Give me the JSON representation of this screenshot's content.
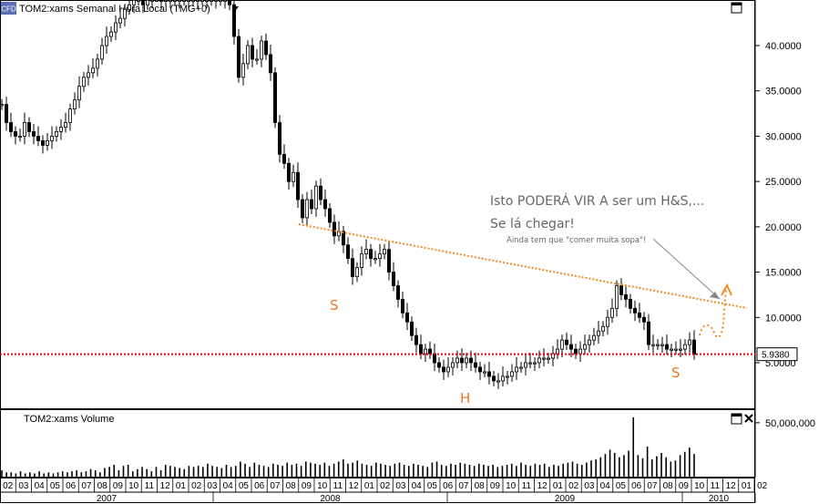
{
  "chart_data": [
    {
      "type": "candlestick",
      "title": "TOM2:xams Semanal Hora Local (TMG+0)",
      "symbol_badge": "CFD",
      "price_axis_ticks": [
        "40.0000",
        "35.0000",
        "30.0000",
        "25.0000",
        "20.0000",
        "15.0000",
        "10.0000",
        "5.0000"
      ],
      "ylim": [
        0.5,
        45
      ],
      "last_price": "5.9380",
      "last_price_value": 5.938,
      "x_months": [
        "02",
        "03",
        "04",
        "05",
        "06",
        "07",
        "08",
        "09",
        "10",
        "11",
        "12",
        "01",
        "02",
        "03",
        "04",
        "05",
        "06",
        "07",
        "08",
        "09",
        "10",
        "11",
        "12",
        "01",
        "02",
        "03",
        "04",
        "05",
        "06",
        "07",
        "08",
        "09",
        "10",
        "11",
        "12",
        "01",
        "02",
        "03",
        "04",
        "05",
        "06",
        "07",
        "08",
        "09",
        "10",
        "11",
        "12",
        "01",
        "02"
      ],
      "x_years": [
        {
          "label": "2007",
          "month_index": 5
        },
        {
          "label": "2008",
          "month_index": 17
        },
        {
          "label": "2009",
          "month_index": 29
        },
        {
          "label": "2010",
          "month_index": 40
        }
      ],
      "closes": [
        33.5,
        31.5,
        30.5,
        30.0,
        30.0,
        31.5,
        30.5,
        30.0,
        29.5,
        29.0,
        29.5,
        30.0,
        30.5,
        31.0,
        31.5,
        33.0,
        34.0,
        35.5,
        36.5,
        37.0,
        37.5,
        38.5,
        40.0,
        41.0,
        41.5,
        42.5,
        43.0,
        44.0,
        44.5,
        45.0,
        45.0,
        44.5,
        45.0,
        45.5,
        45.5,
        45.0,
        45.0,
        45.0,
        45.0,
        45.0,
        45.0,
        45.0,
        45.0,
        45.0,
        45.0,
        45.0,
        45.0,
        45.0,
        45.0,
        45.0,
        44.5,
        41.0,
        36.5,
        38.0,
        40.0,
        38.5,
        38.5,
        40.5,
        39.0,
        37.0,
        31.5,
        28.0,
        27.0,
        25.0,
        26.0,
        23.0,
        21.0,
        23.0,
        22.0,
        24.5,
        23.0,
        22.0,
        20.5,
        19.0,
        19.5,
        18.0,
        16.5,
        14.5,
        15.5,
        17.0,
        17.5,
        16.5,
        16.5,
        17.0,
        17.5,
        15.0,
        13.5,
        12.0,
        10.5,
        9.5,
        8.0,
        7.0,
        6.0,
        6.5,
        6.0,
        5.0,
        4.5,
        4.0,
        4.5,
        5.0,
        5.5,
        5.0,
        5.5,
        5.0,
        4.5,
        4.0,
        4.0,
        3.5,
        3.0,
        3.0,
        3.5,
        3.5,
        4.0,
        4.5,
        4.5,
        5.0,
        5.0,
        5.0,
        5.5,
        5.5,
        5.5,
        6.0,
        6.5,
        7.5,
        7.0,
        6.5,
        6.0,
        6.5,
        7.0,
        7.5,
        8.0,
        8.5,
        9.0,
        10.0,
        11.0,
        13.5,
        12.5,
        12.0,
        11.0,
        10.5,
        10.0,
        9.5,
        7.0,
        7.0,
        7.0,
        7.0,
        6.5,
        6.5,
        6.5,
        6.5,
        7.0,
        7.5,
        5.938
      ],
      "volume": {
        "label": "TOM2:xams Volume",
        "axis_tick": "50,000,000",
        "ylim": [
          0,
          60000000
        ],
        "values": [
          6,
          4,
          4,
          3,
          5,
          3,
          4,
          3,
          5,
          3,
          4,
          3,
          4,
          5,
          4,
          5,
          6,
          4,
          5,
          7,
          6,
          4,
          8,
          9,
          11,
          6,
          10,
          11,
          5,
          7,
          9,
          7,
          5,
          9,
          6,
          11,
          10,
          9,
          8,
          7,
          10,
          9,
          10,
          9,
          12,
          10,
          9,
          8,
          11,
          9,
          10,
          14,
          12,
          9,
          13,
          11,
          10,
          9,
          12,
          11,
          10,
          13,
          11,
          12,
          10,
          14,
          13,
          12,
          11,
          13,
          10,
          12,
          14,
          16,
          12,
          13,
          15,
          12,
          11,
          10,
          13,
          12,
          11,
          10,
          12,
          13,
          11,
          10,
          12,
          11,
          10,
          9,
          13,
          14,
          11,
          10,
          12,
          11,
          13,
          12,
          11,
          10,
          12,
          11,
          10,
          11,
          9,
          10,
          11,
          12,
          10,
          13,
          11,
          10,
          12,
          11,
          12,
          9,
          11,
          10,
          12,
          13,
          14,
          12,
          11,
          13,
          15,
          16,
          18,
          21,
          25,
          22,
          18,
          20,
          24,
          55,
          20,
          17,
          28,
          16,
          19,
          22,
          18,
          14,
          15,
          20,
          23,
          27,
          21
        ]
      }
    }
  ],
  "toolbar": {
    "maximize_top_icon": "maximize-icon",
    "maximize_volume_icon": "maximize-icon",
    "close_volume_icon": "close-icon",
    "dropdown_icon": "dropdown-arrow-icon"
  },
  "annotations": {
    "line1": "Isto PODERÁ VIR A ser um H&S,...",
    "line2": "Se lá chegar!",
    "line3": "Ainda tem que \"comer muita sopa\"!",
    "label_left_shoulder": "S",
    "label_head": "H",
    "label_right_shoulder": "S"
  },
  "colors": {
    "candle": "#000000",
    "neckline": "#f08a24",
    "support": "#e00000",
    "shoulder_label": "#f07820",
    "annotation_text": "#666666",
    "arrow": "#888888"
  }
}
